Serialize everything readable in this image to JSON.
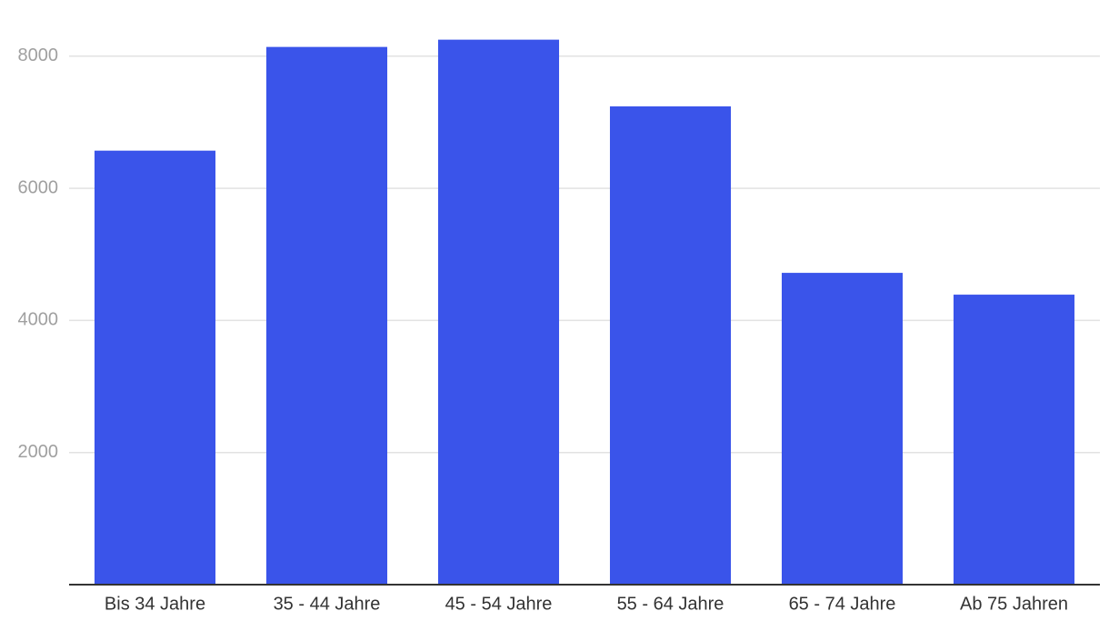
{
  "chart_data": {
    "type": "bar",
    "categories": [
      "Bis 34 Jahre",
      "35 - 44 Jahre",
      "45 - 54 Jahre",
      "55 - 64 Jahre",
      "65 - 74 Jahre",
      "Ab 75 Jahren"
    ],
    "values": [
      6570,
      8140,
      8250,
      7240,
      4720,
      4390
    ],
    "color": "#3a54ea",
    "ylim": [
      0,
      8300
    ],
    "yticks": [
      2000,
      4000,
      6000,
      8000
    ],
    "grid": true
  }
}
